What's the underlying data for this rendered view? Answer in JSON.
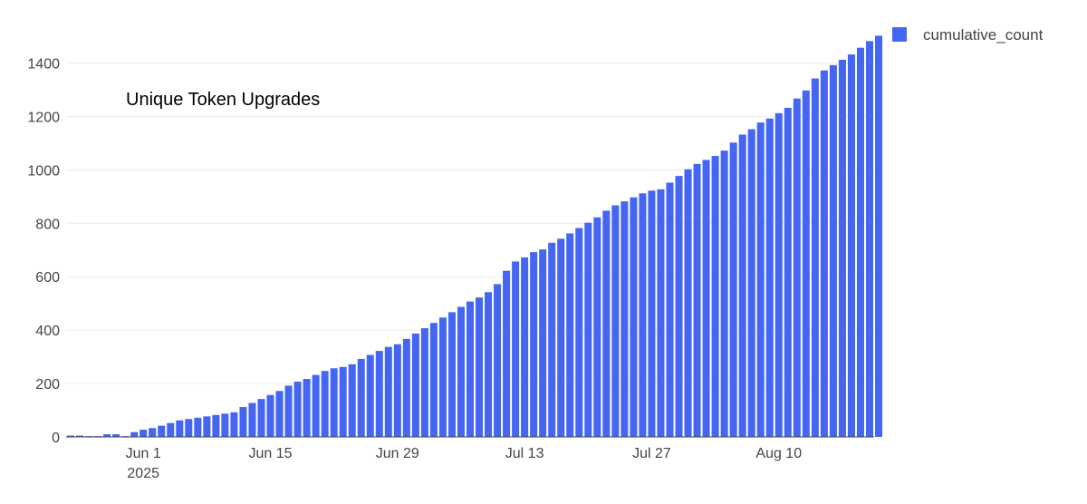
{
  "chart_data": {
    "type": "bar",
    "title": "Unique Token Upgrades",
    "series": [
      {
        "name": "cumulative_count",
        "color": "#4466f2",
        "x_start": "2025-05-24",
        "x_end": "2025-08-20",
        "values": [
          5,
          5,
          3,
          3,
          10,
          10,
          3,
          18,
          27,
          33,
          42,
          52,
          62,
          67,
          72,
          77,
          82,
          87,
          92,
          112,
          127,
          142,
          157,
          172,
          192,
          207,
          217,
          232,
          247,
          257,
          262,
          272,
          292,
          307,
          322,
          337,
          347,
          367,
          387,
          407,
          427,
          447,
          467,
          487,
          507,
          522,
          542,
          572,
          622,
          657,
          672,
          692,
          702,
          727,
          742,
          762,
          782,
          802,
          822,
          847,
          867,
          882,
          897,
          912,
          922,
          927,
          952,
          977,
          1002,
          1022,
          1037,
          1052,
          1072,
          1102,
          1132,
          1152,
          1177,
          1192,
          1212,
          1232,
          1267,
          1297,
          1342,
          1372,
          1392,
          1412,
          1432,
          1457,
          1482,
          1502
        ]
      }
    ],
    "x_ticks": [
      {
        "label": "Jun 1",
        "sublabel": "2025",
        "date": "2025-06-01"
      },
      {
        "label": "Jun 15",
        "sublabel": "",
        "date": "2025-06-15"
      },
      {
        "label": "Jun 29",
        "sublabel": "",
        "date": "2025-06-29"
      },
      {
        "label": "Jul 13",
        "sublabel": "",
        "date": "2025-07-13"
      },
      {
        "label": "Jul 27",
        "sublabel": "",
        "date": "2025-07-27"
      },
      {
        "label": "Aug 10",
        "sublabel": "",
        "date": "2025-08-10"
      }
    ],
    "y_ticks": [
      0,
      200,
      400,
      600,
      800,
      1000,
      1200,
      1400
    ],
    "ylim": [
      0,
      1500
    ],
    "grid": true,
    "legend": {
      "position": "top-right",
      "label": "cumulative_count"
    }
  }
}
